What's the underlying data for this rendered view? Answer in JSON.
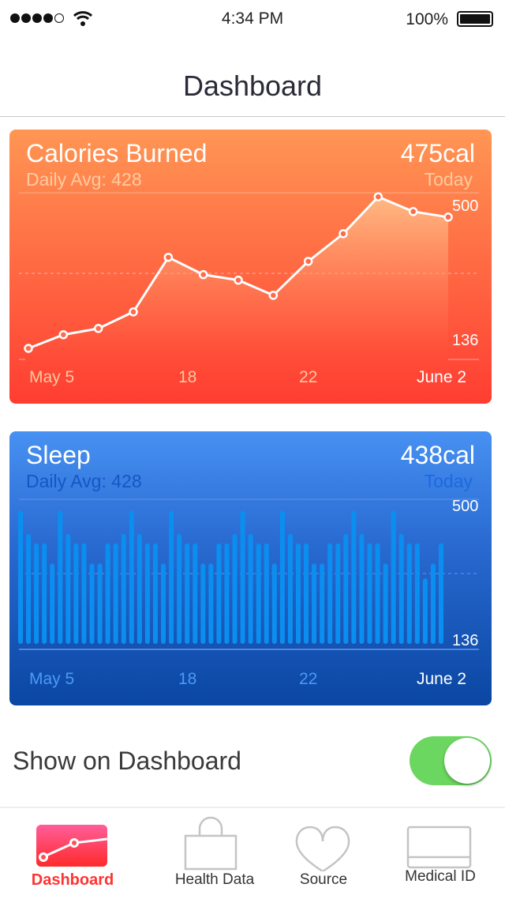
{
  "status": {
    "time": "4:34 PM",
    "battery": "100%",
    "signal_bars": 4,
    "signal_total": 5,
    "icons": [
      "signal-dots-icon",
      "wifi-icon",
      "battery-icon"
    ]
  },
  "nav": {
    "title": "Dashboard"
  },
  "calories": {
    "title": "Calories Burned",
    "value": "475cal",
    "avg": "Daily Avg: 428",
    "period": "Today",
    "colors": {
      "top": "#ff9654",
      "bottom": "#ff3d32"
    }
  },
  "sleep": {
    "title": "Sleep",
    "value": "438cal",
    "avg": "Daily Avg: 428",
    "period": "Today",
    "colors": {
      "top": "#4791f2",
      "bottom": "#0a46a2",
      "bar": "#0a8ff0"
    }
  },
  "chart_data": [
    {
      "type": "line",
      "series": [
        {
          "values": [
            112,
            149,
            166,
            211,
            359,
            312,
            297,
            256,
            348,
            423,
            523,
            483,
            468
          ]
        }
      ],
      "x_tick_labels": [
        "May 5",
        "18",
        "22",
        "June 2"
      ],
      "y_tick_labels": [
        "500",
        "136"
      ],
      "ylim": [
        82,
        534
      ],
      "grid": "dashed average line"
    },
    {
      "type": "bar",
      "series": [
        {
          "values": [
            490,
            426,
            400,
            400,
            345,
            490,
            426,
            400,
            400,
            345,
            345,
            400,
            400,
            426,
            490,
            426,
            400,
            400,
            345,
            490,
            426,
            400,
            400,
            345,
            345,
            400,
            400,
            426,
            490,
            426,
            400,
            400,
            345,
            490,
            426,
            400,
            400,
            345,
            345,
            400,
            400,
            426,
            490,
            426,
            400,
            400,
            345,
            490,
            426,
            400,
            400,
            304,
            345,
            400
          ]
        }
      ],
      "x_tick_labels": [
        "May 5",
        "18",
        "22",
        "June 2"
      ],
      "y_tick_labels": [
        "500",
        "136"
      ],
      "ylim": [
        125,
        534
      ],
      "grid": "dashed average line"
    }
  ],
  "setting": {
    "label": "Show on Dashboard",
    "enabled": true,
    "color": "#6bd760"
  },
  "tabs": [
    {
      "label": "Dashboard",
      "icon": "dashboard-chart-icon",
      "active": true,
      "color": "#ff3333"
    },
    {
      "label": "Health Data",
      "icon": "bag-icon"
    },
    {
      "label": "Source",
      "icon": "heart-icon"
    },
    {
      "label": "Medical ID",
      "icon": "medical-id-card-icon"
    }
  ]
}
